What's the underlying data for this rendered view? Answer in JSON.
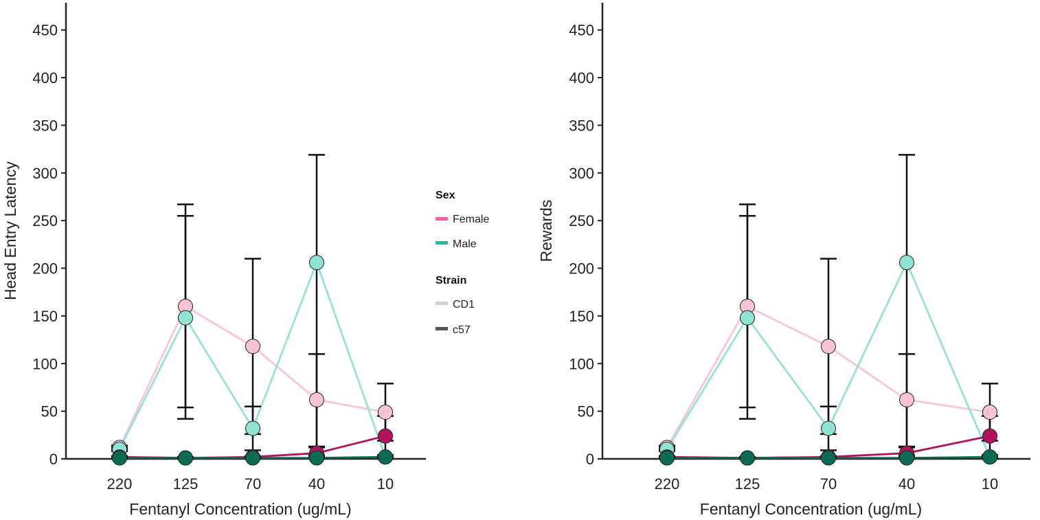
{
  "legend": {
    "sex_title": "Sex",
    "strain_title": "Strain",
    "sex_items": [
      {
        "label": "Female",
        "color": "#f0609e"
      },
      {
        "label": "Male",
        "color": "#1fbf9f"
      }
    ],
    "strain_items": [
      {
        "label": "CD1",
        "color": "#d0d0d0"
      },
      {
        "label": "c57",
        "color": "#555555"
      }
    ]
  },
  "chart_data": [
    {
      "type": "line",
      "xlabel": "Fentanyl Concentration (ug/mL)",
      "ylabel": "Head Entry Latency",
      "categories": [
        "220",
        "125",
        "70",
        "40",
        "10"
      ],
      "ylim": [
        0,
        480
      ],
      "yticks": [
        0,
        50,
        100,
        150,
        200,
        250,
        300,
        350,
        400,
        450
      ],
      "series": [
        {
          "name": "Female CD1",
          "line": "#f8c4d8",
          "fill": "#f9c3d5",
          "values": [
            12,
            160,
            118,
            62,
            49
          ],
          "err_low": [
            10,
            54,
            26,
            12,
            19
          ],
          "err_high": [
            14,
            267,
            210,
            110,
            79
          ]
        },
        {
          "name": "Male CD1",
          "line": "#96e2d3",
          "fill": "#8fe3d2",
          "values": [
            10,
            148,
            32,
            206,
            2
          ],
          "err_low": [
            8,
            42,
            9,
            4,
            0
          ],
          "err_high": [
            12,
            255,
            55,
            319,
            4
          ]
        },
        {
          "name": "Female c57",
          "line": "#b0135e",
          "fill": "#b2135c",
          "values": [
            2,
            1,
            2,
            6,
            24
          ],
          "err_low": [
            1,
            0,
            1,
            2,
            2
          ],
          "err_high": [
            3,
            2,
            3,
            13,
            45
          ]
        },
        {
          "name": "Male c57",
          "line": "#0a6a52",
          "fill": "#0c6b55",
          "values": [
            1,
            1,
            1,
            1,
            2
          ],
          "err_low": [
            0,
            0,
            0,
            0,
            0
          ],
          "err_high": [
            2,
            2,
            2,
            2,
            4
          ]
        }
      ]
    },
    {
      "type": "line",
      "xlabel": "Fentanyl Concentration (ug/mL)",
      "ylabel": "Rewards",
      "categories": [
        "220",
        "125",
        "70",
        "40",
        "10"
      ],
      "ylim": [
        0,
        480
      ],
      "yticks": [
        0,
        50,
        100,
        150,
        200,
        250,
        300,
        350,
        400,
        450
      ],
      "series": [
        {
          "name": "Female CD1",
          "line": "#f8c4d8",
          "fill": "#f9c3d5",
          "values": [
            12,
            160,
            118,
            62,
            49
          ],
          "err_low": [
            10,
            54,
            26,
            12,
            19
          ],
          "err_high": [
            14,
            267,
            210,
            110,
            79
          ]
        },
        {
          "name": "Male CD1",
          "line": "#96e2d3",
          "fill": "#8fe3d2",
          "values": [
            10,
            148,
            32,
            206,
            2
          ],
          "err_low": [
            8,
            42,
            9,
            4,
            0
          ],
          "err_high": [
            12,
            255,
            55,
            319,
            4
          ]
        },
        {
          "name": "Female c57",
          "line": "#b0135e",
          "fill": "#b2135c",
          "values": [
            2,
            1,
            2,
            6,
            24
          ],
          "err_low": [
            1,
            0,
            1,
            2,
            2
          ],
          "err_high": [
            3,
            2,
            3,
            13,
            45
          ]
        },
        {
          "name": "Male c57",
          "line": "#0a6a52",
          "fill": "#0c6b55",
          "values": [
            1,
            1,
            1,
            1,
            2
          ],
          "err_low": [
            0,
            0,
            0,
            0,
            0
          ],
          "err_high": [
            2,
            2,
            2,
            2,
            4
          ]
        }
      ]
    }
  ]
}
